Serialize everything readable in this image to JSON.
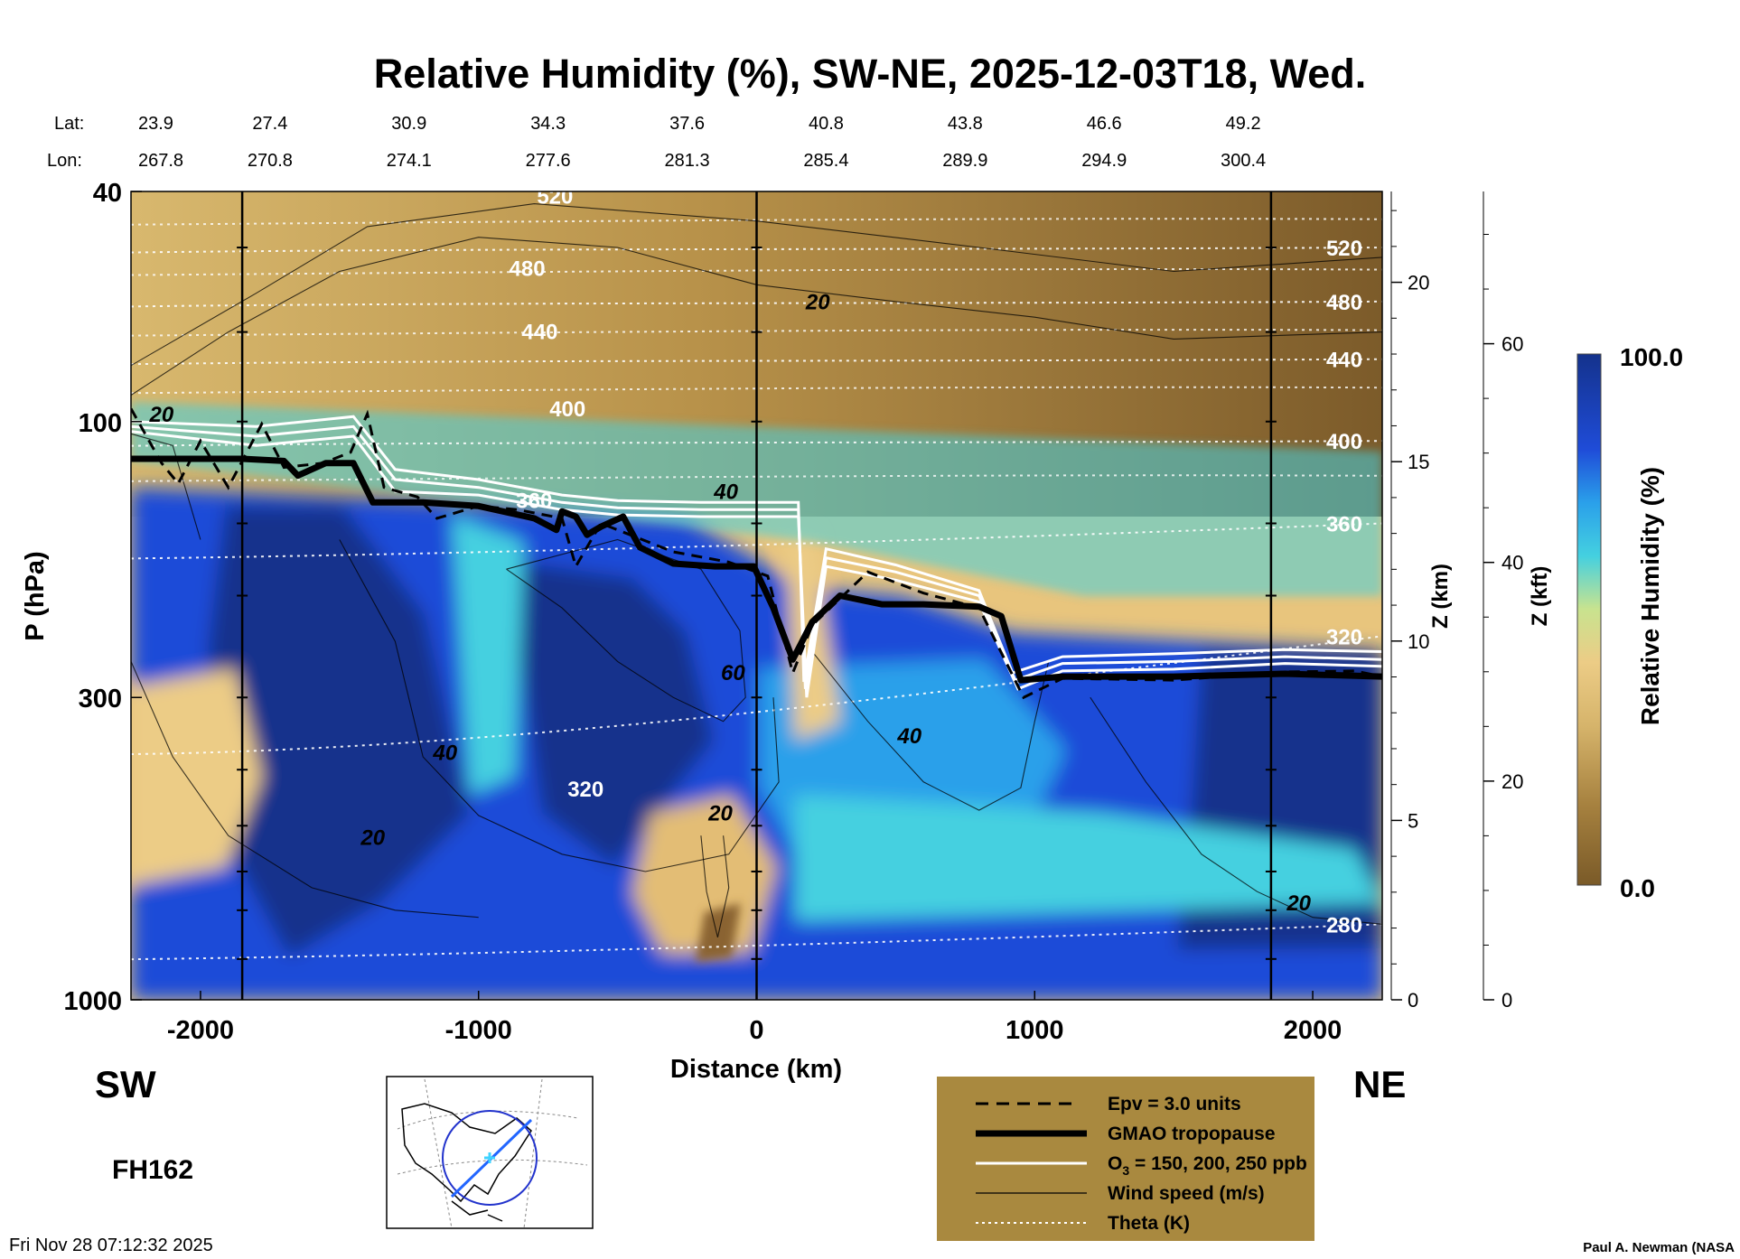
{
  "chart_data": {
    "type": "heatmap",
    "title": "Relative Humidity (%), SW-NE, 2025-12-03T18, Wed.",
    "xlabel": "Distance (km)",
    "ylabel": "P (hPa)",
    "right_axis_km_label": "Z (km)",
    "right_axis_kft_label": "Z (kft)",
    "colorbar_label": "Relative Humidity (%)",
    "colorbar_max_label": "100.0",
    "colorbar_min_label": "0.0",
    "colorbar_range": [
      0,
      100
    ],
    "xlim": [
      -2250,
      2250
    ],
    "ylim": [
      1000,
      40
    ],
    "y_scale": "log",
    "x_ticks": [
      "-2000",
      "-1000",
      "0",
      "1000",
      "2000"
    ],
    "x_tick_values": [
      -2000,
      -1000,
      0,
      1000,
      2000
    ],
    "y_ticks": [
      "40",
      "100",
      "300",
      "1000"
    ],
    "y_tick_values": [
      40,
      100,
      300,
      1000
    ],
    "z_km_ticks": [
      "0",
      "5",
      "10",
      "15",
      "20"
    ],
    "z_km_values": [
      0,
      5,
      10,
      15,
      20
    ],
    "z_kft_ticks": [
      "0",
      "20",
      "40",
      "60"
    ],
    "z_kft_values": [
      0,
      20,
      40,
      60
    ],
    "lat_label": "Lat:",
    "lon_label": "Lon:",
    "lat_values": [
      "23.9",
      "27.4",
      "30.9",
      "34.3",
      "37.6",
      "40.8",
      "43.8",
      "46.6",
      "49.2"
    ],
    "lon_values": [
      "267.8",
      "270.8",
      "274.1",
      "277.6",
      "281.3",
      "285.4",
      "289.9",
      "294.9",
      "300.4"
    ],
    "latlon_distances": [
      -2250,
      -1750,
      -1250,
      -750,
      -250,
      250,
      750,
      1250,
      1750
    ],
    "vertical_markers_km": [
      -1850,
      0,
      1850
    ],
    "theta_right_labels": [
      {
        "text": "520",
        "p": 50
      },
      {
        "text": "480",
        "p": 62
      },
      {
        "text": "440",
        "p": 78
      },
      {
        "text": "400",
        "p": 108
      },
      {
        "text": "360",
        "p": 150
      },
      {
        "text": "320",
        "p": 235
      },
      {
        "text": "280",
        "p": 740
      }
    ],
    "theta_inner_labels": [
      {
        "text": "520",
        "x": -725,
        "p": 42
      },
      {
        "text": "480",
        "x": -825,
        "p": 56
      },
      {
        "text": "440",
        "x": -780,
        "p": 72
      },
      {
        "text": "400",
        "x": -680,
        "p": 98
      },
      {
        "text": "360",
        "x": -800,
        "p": 141
      },
      {
        "text": "320",
        "x": -615,
        "p": 445
      }
    ],
    "wind_labels": [
      {
        "text": "20",
        "x": 220,
        "p": 64
      },
      {
        "text": "40",
        "x": -110,
        "p": 136
      },
      {
        "text": "60",
        "x": -85,
        "p": 280
      },
      {
        "text": "40",
        "x": 550,
        "p": 360
      },
      {
        "text": "40",
        "x": -1120,
        "p": 385
      },
      {
        "text": "20",
        "x": -130,
        "p": 490
      },
      {
        "text": "20",
        "x": -1380,
        "p": 540
      },
      {
        "text": "20",
        "x": -2140,
        "p": 100
      },
      {
        "text": "20",
        "x": 1950,
        "p": 700
      }
    ],
    "tropopause_profile": [
      [
        -2250,
        116
      ],
      [
        -1850,
        116
      ],
      [
        -1700,
        117
      ],
      [
        -1650,
        124
      ],
      [
        -1550,
        118
      ],
      [
        -1450,
        118
      ],
      [
        -1380,
        138
      ],
      [
        -1200,
        138
      ],
      [
        -1000,
        140
      ],
      [
        -800,
        147
      ],
      [
        -720,
        154
      ],
      [
        -700,
        143
      ],
      [
        -650,
        146
      ],
      [
        -610,
        157
      ],
      [
        -560,
        152
      ],
      [
        -480,
        146
      ],
      [
        -420,
        165
      ],
      [
        -300,
        176
      ],
      [
        -150,
        178
      ],
      [
        -10,
        178
      ],
      [
        60,
        210
      ],
      [
        130,
        258
      ],
      [
        200,
        222
      ],
      [
        300,
        200
      ],
      [
        450,
        207
      ],
      [
        600,
        207
      ],
      [
        800,
        209
      ],
      [
        880,
        217
      ],
      [
        950,
        280
      ],
      [
        1100,
        276
      ],
      [
        1500,
        276
      ],
      [
        1900,
        273
      ],
      [
        2250,
        276
      ]
    ],
    "epv_profile": [
      [
        -2250,
        95
      ],
      [
        -2140,
        118
      ],
      [
        -2080,
        128
      ],
      [
        -2000,
        108
      ],
      [
        -1900,
        130
      ],
      [
        -1780,
        101
      ],
      [
        -1700,
        120
      ],
      [
        -1560,
        118
      ],
      [
        -1460,
        113
      ],
      [
        -1400,
        97
      ],
      [
        -1340,
        130
      ],
      [
        -1220,
        135
      ],
      [
        -1150,
        147
      ],
      [
        -1000,
        140
      ],
      [
        -860,
        142
      ],
      [
        -700,
        147
      ],
      [
        -650,
        178
      ],
      [
        -560,
        150
      ],
      [
        -440,
        158
      ],
      [
        -300,
        168
      ],
      [
        -100,
        175
      ],
      [
        40,
        185
      ],
      [
        130,
        272
      ],
      [
        200,
        225
      ],
      [
        400,
        182
      ],
      [
        600,
        198
      ],
      [
        800,
        210
      ],
      [
        960,
        300
      ],
      [
        1100,
        278
      ],
      [
        1500,
        280
      ],
      [
        1900,
        271
      ],
      [
        2150,
        270
      ],
      [
        2250,
        276
      ]
    ],
    "ozone_contours": [
      [
        [
          -2250,
          104
        ],
        [
          -1800,
          110
        ],
        [
          -1450,
          106
        ],
        [
          -1300,
          132
        ],
        [
          -1000,
          134
        ],
        [
          -700,
          142
        ],
        [
          -500,
          145
        ],
        [
          -200,
          146
        ],
        [
          150,
          146
        ],
        [
          180,
          300
        ],
        [
          250,
          178
        ],
        [
          500,
          188
        ],
        [
          800,
          205
        ],
        [
          940,
          290
        ],
        [
          1100,
          270
        ],
        [
          1500,
          268
        ],
        [
          1900,
          262
        ],
        [
          2250,
          265
        ]
      ],
      [
        [
          -2250,
          102
        ],
        [
          -1800,
          106
        ],
        [
          -1450,
          102
        ],
        [
          -1300,
          126
        ],
        [
          -1000,
          130
        ],
        [
          -700,
          138
        ],
        [
          -500,
          141
        ],
        [
          -200,
          142
        ],
        [
          150,
          142
        ],
        [
          175,
          290
        ],
        [
          250,
          172
        ],
        [
          500,
          182
        ],
        [
          800,
          200
        ],
        [
          930,
          280
        ],
        [
          1100,
          262
        ],
        [
          1500,
          260
        ],
        [
          1900,
          255
        ],
        [
          2250,
          258
        ]
      ],
      [
        [
          -2250,
          100
        ],
        [
          -1800,
          102
        ],
        [
          -1450,
          98
        ],
        [
          -1300,
          121
        ],
        [
          -1000,
          126
        ],
        [
          -700,
          134
        ],
        [
          -500,
          137
        ],
        [
          -200,
          138
        ],
        [
          150,
          138
        ],
        [
          170,
          282
        ],
        [
          250,
          166
        ],
        [
          500,
          177
        ],
        [
          800,
          196
        ],
        [
          920,
          272
        ],
        [
          1100,
          255
        ],
        [
          1500,
          252
        ],
        [
          1900,
          248
        ],
        [
          2250,
          250
        ]
      ]
    ],
    "legend": {
      "epv": "Epv = 3.0 units",
      "tropopause": "GMAO tropopause",
      "ozone_prefix": "O",
      "ozone_sub": "3",
      "ozone_suffix": " = 150, 200, 250 ppb",
      "wind": "Wind speed (m/s)",
      "theta": "Theta (K)"
    },
    "sw_label": "SW",
    "ne_label": "NE",
    "forecast_hour": "FH162",
    "timestamp": "Fri Nov 28 07:12:32 2025",
    "credit": "Paul A. Newman (NASA"
  },
  "colors": {
    "dry_dark": "#7a5a28",
    "dry": "#a6813f",
    "mid_dry": "#d6b46b",
    "mid": "#eccc86",
    "cyan": "#44d0e0",
    "blue": "#1f4cd8",
    "navy": "#14328c",
    "legend_bg": "#a9893f"
  }
}
